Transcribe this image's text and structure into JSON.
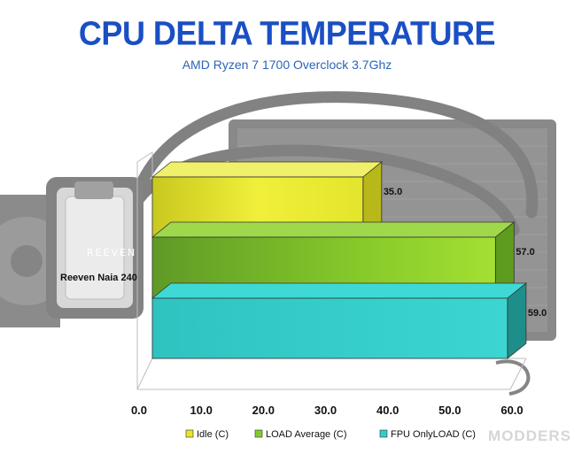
{
  "chart_data": {
    "type": "bar",
    "orientation": "horizontal",
    "title": "CPU DELTA TEMPERATURE",
    "subtitle": "AMD Ryzen 7 1700 Overclock 3.7Ghz",
    "categories": [
      "Reeven Naia 240"
    ],
    "series": [
      {
        "name": "Idle (C)",
        "values": [
          35.0
        ],
        "color": "#e6e62a"
      },
      {
        "name": "LOAD Average (C)",
        "values": [
          57.0
        ],
        "color": "#86c92a"
      },
      {
        "name": "FPU OnlyLOAD  (C)",
        "values": [
          59.0
        ],
        "color": "#33cdc9"
      }
    ],
    "data_labels": [
      "35.0",
      "57.0",
      "59.0"
    ],
    "xticks": [
      "0.0",
      "10.0",
      "20.0",
      "30.0",
      "40.0",
      "50.0",
      "60.0"
    ],
    "xlim": [
      0,
      60
    ],
    "legend": "bottom",
    "grid": false,
    "style": "3d",
    "background": "photo of liquid CPU cooler with radiator, tubing and pump block",
    "colors": {
      "title": "#1a4fc4",
      "subtitle": "#2c64b8"
    }
  },
  "background_photo": {
    "pump_brand": "REEVEN"
  },
  "watermark": "MODDERS"
}
